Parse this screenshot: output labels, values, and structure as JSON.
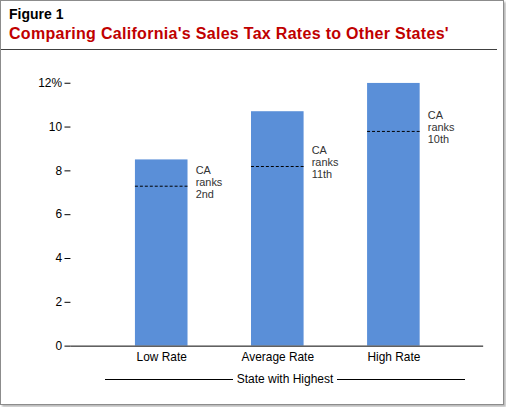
{
  "chart_data": {
    "type": "bar",
    "title": "Figure 1",
    "subtitle": "Comparing California's Sales Tax Rates to Other States'",
    "x_label": "State with Highest",
    "categories": [
      "Low Rate",
      "Average Rate",
      "High Rate"
    ],
    "values": [
      8.5,
      10.7,
      12
    ],
    "color": "#5a8fd8",
    "ylim": [
      0,
      12
    ],
    "yticks": [
      0,
      2,
      4,
      6,
      8,
      10,
      {
        "value": 12,
        "label": "12%"
      }
    ],
    "grid": false,
    "annotations": [
      {
        "category": "Low Rate",
        "value": 7.3,
        "label": "CA ranks 2nd"
      },
      {
        "category": "Average Rate",
        "value": 8.2,
        "label": "CA ranks 11th"
      },
      {
        "category": "High Rate",
        "value": 9.8,
        "label": "CA ranks 10th"
      }
    ]
  }
}
